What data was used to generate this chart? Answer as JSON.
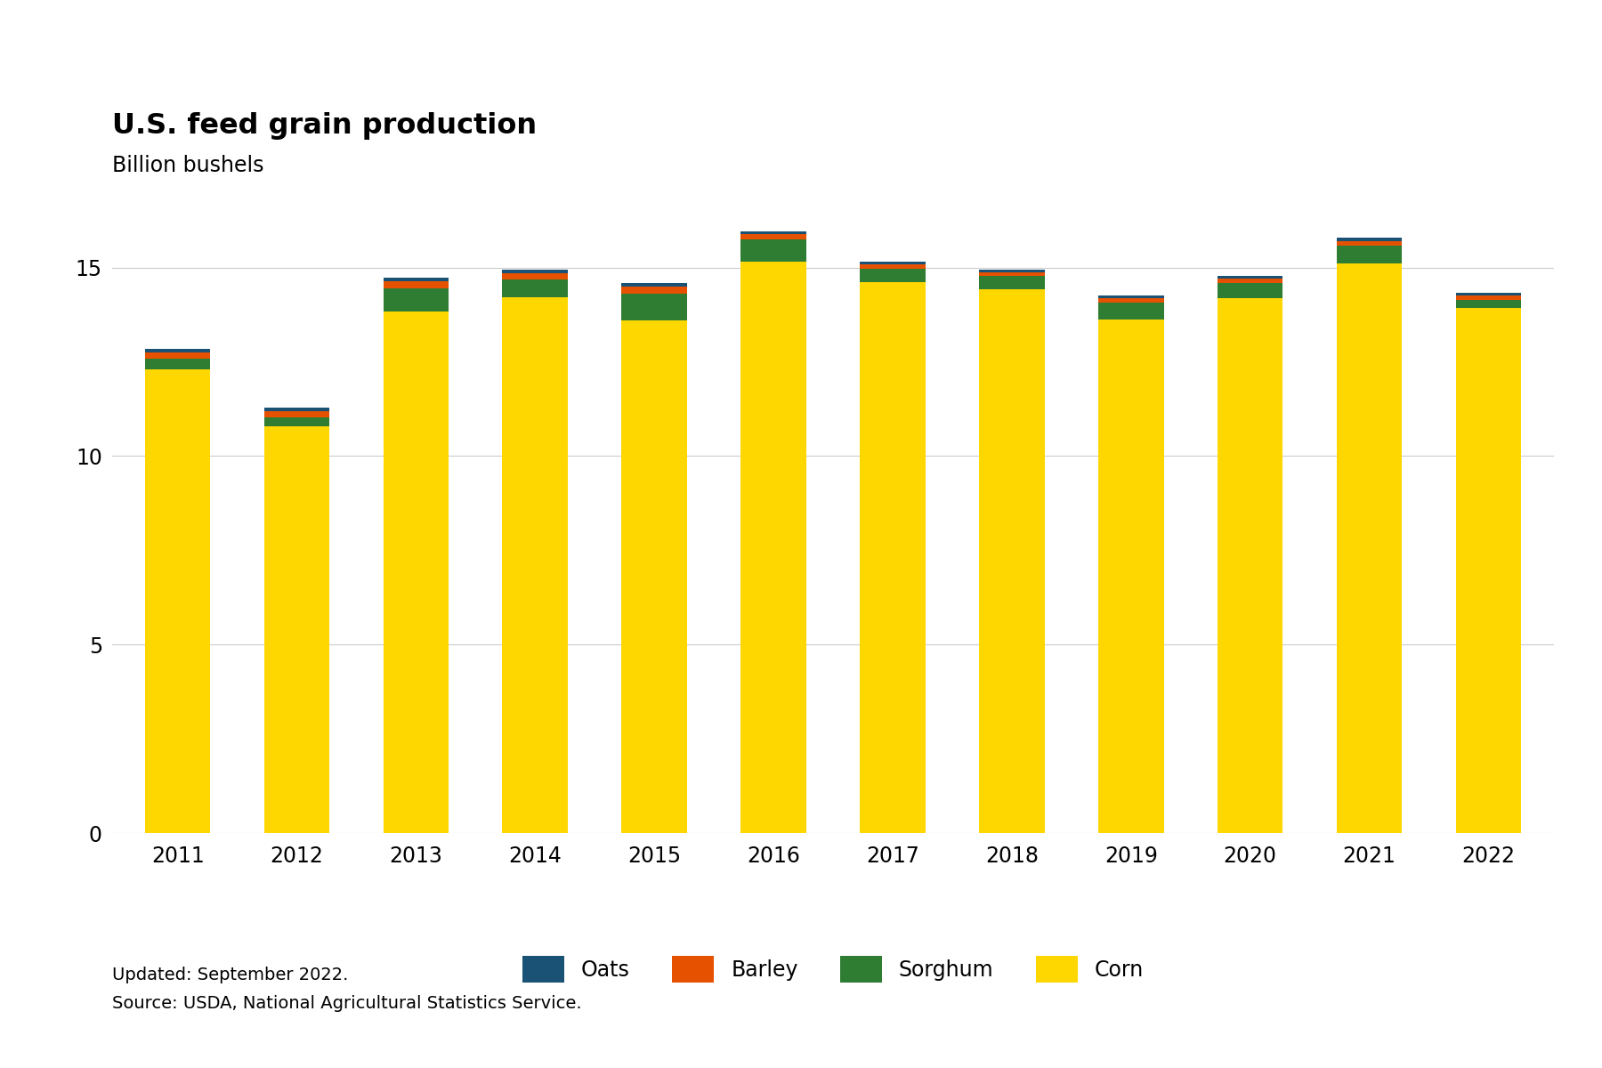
{
  "years": [
    2011,
    2012,
    2013,
    2014,
    2015,
    2016,
    2017,
    2018,
    2019,
    2020,
    2021,
    2022
  ],
  "corn": [
    12.31,
    10.78,
    13.83,
    14.22,
    13.6,
    15.15,
    14.61,
    14.42,
    13.62,
    14.18,
    15.12,
    13.93
  ],
  "sorghum": [
    0.28,
    0.25,
    0.61,
    0.47,
    0.72,
    0.59,
    0.35,
    0.36,
    0.46,
    0.41,
    0.46,
    0.21
  ],
  "barley": [
    0.16,
    0.16,
    0.19,
    0.17,
    0.17,
    0.15,
    0.13,
    0.1,
    0.11,
    0.13,
    0.13,
    0.12
  ],
  "oats": [
    0.09,
    0.09,
    0.1,
    0.09,
    0.09,
    0.08,
    0.08,
    0.07,
    0.07,
    0.07,
    0.08,
    0.07
  ],
  "colors": {
    "corn": "#FFD700",
    "sorghum": "#2E7D32",
    "barley": "#E65100",
    "oats": "#1A5276"
  },
  "title": "U.S. feed grain production",
  "ylabel": "Billion bushels",
  "ylim": [
    0,
    17
  ],
  "yticks": [
    0,
    5,
    10,
    15
  ],
  "footnote_line1": "Updated: September 2022.",
  "footnote_line2": "Source: USDA, National Agricultural Statistics Service.",
  "background_color": "#FFFFFF"
}
